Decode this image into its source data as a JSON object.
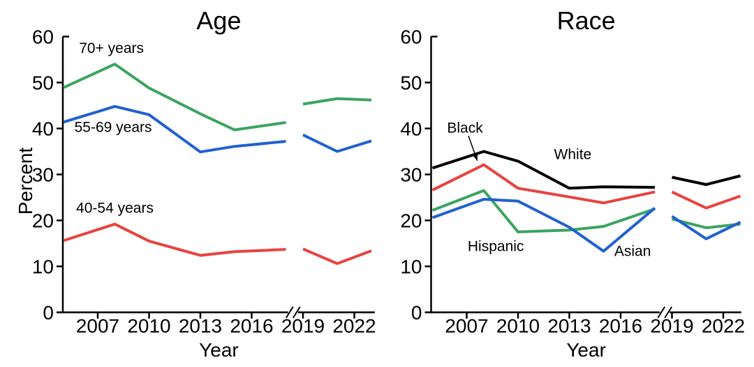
{
  "figure": {
    "background_color": "#ffffff",
    "text_color": "#000000",
    "axis_color": "#000000"
  },
  "chart_data": [
    {
      "type": "line",
      "title": "Age",
      "xlabel": "Year",
      "ylabel": "Percent",
      "ylim": [
        0,
        60
      ],
      "yticks": [
        0,
        10,
        20,
        30,
        40,
        50,
        60
      ],
      "xticks": [
        2007,
        2010,
        2013,
        2016,
        2019,
        2022
      ],
      "xlim": [
        2004.9,
        2023.2
      ],
      "axis_break_year": 2018.42,
      "grid": false,
      "legend": "inline-labels",
      "series": [
        {
          "name": "70+ years",
          "color": "#3ba45f",
          "segments": [
            {
              "x": [
                2005,
                2008,
                2010,
                2013,
                2015,
                2018
              ],
              "y": [
                48.9,
                54.0,
                48.8,
                43.2,
                39.7,
                41.3
              ]
            },
            {
              "x": [
                2019,
                2021,
                2023
              ],
              "y": [
                45.3,
                46.5,
                46.2
              ]
            }
          ]
        },
        {
          "name": "55-69 years",
          "color": "#2161d1",
          "segments": [
            {
              "x": [
                2005,
                2008,
                2010,
                2013,
                2015,
                2018
              ],
              "y": [
                41.4,
                44.8,
                43.0,
                34.9,
                36.1,
                37.2
              ]
            },
            {
              "x": [
                2019,
                2021,
                2023
              ],
              "y": [
                38.6,
                35.0,
                37.3
              ]
            }
          ]
        },
        {
          "name": "40-54 years",
          "color": "#e8433f",
          "segments": [
            {
              "x": [
                2005,
                2008,
                2010,
                2013,
                2015,
                2018
              ],
              "y": [
                15.6,
                19.2,
                15.5,
                12.4,
                13.2,
                13.7
              ]
            },
            {
              "x": [
                2019,
                2021,
                2023
              ],
              "y": [
                13.8,
                10.6,
                13.4
              ]
            }
          ]
        }
      ],
      "annotations": [
        {
          "text": "70+ years",
          "year": 2007.8,
          "pct": 57.6
        },
        {
          "text": "55-69 years",
          "year": 2007.9,
          "pct": 40.4
        },
        {
          "text": "40-54 years",
          "year": 2008.0,
          "pct": 22.8
        }
      ]
    },
    {
      "type": "line",
      "title": "Race",
      "xlabel": "Year",
      "ylabel": "",
      "ylim": [
        0,
        60
      ],
      "yticks": [
        0,
        10,
        20,
        30,
        40,
        50,
        60
      ],
      "xticks": [
        2007,
        2010,
        2013,
        2016,
        2019,
        2022
      ],
      "xlim": [
        2004.9,
        2023.05
      ],
      "axis_break_year": 2018.58,
      "grid": false,
      "legend": "inline-labels",
      "series": [
        {
          "name": "White",
          "color": "#000000",
          "segments": [
            {
              "x": [
                2005,
                2008,
                2010,
                2013,
                2015,
                2018
              ],
              "y": [
                31.4,
                35.0,
                32.9,
                27.0,
                27.3,
                27.2
              ]
            },
            {
              "x": [
                2019,
                2021,
                2023
              ],
              "y": [
                29.4,
                27.8,
                29.7
              ]
            }
          ]
        },
        {
          "name": "Black",
          "color": "#e8433f",
          "segments": [
            {
              "x": [
                2005,
                2008,
                2010,
                2013,
                2015,
                2018
              ],
              "y": [
                26.6,
                32.1,
                27.0,
                25.1,
                23.8,
                26.2
              ]
            },
            {
              "x": [
                2019,
                2021,
                2023
              ],
              "y": [
                26.2,
                22.7,
                25.3
              ]
            }
          ]
        },
        {
          "name": "Hispanic",
          "color": "#3ba45f",
          "segments": [
            {
              "x": [
                2005,
                2008,
                2010,
                2013,
                2015,
                2018
              ],
              "y": [
                22.2,
                26.5,
                17.5,
                17.9,
                18.7,
                22.5
              ]
            },
            {
              "x": [
                2019,
                2021,
                2023
              ],
              "y": [
                20.3,
                18.4,
                19.2
              ]
            }
          ]
        },
        {
          "name": "Asian",
          "color": "#2161d1",
          "segments": [
            {
              "x": [
                2005,
                2008,
                2010,
                2013,
                2015,
                2018
              ],
              "y": [
                20.6,
                24.6,
                24.2,
                18.5,
                13.3,
                22.7
              ]
            },
            {
              "x": [
                2019,
                2021,
                2023
              ],
              "y": [
                20.9,
                16.0,
                19.6
              ]
            }
          ]
        }
      ],
      "annotations": [
        {
          "text": "Black",
          "year": 2006.9,
          "pct": 40.2,
          "arrow": {
            "from": [
              2007.1,
              38.4
            ],
            "to": [
              2007.62,
              33.0
            ]
          }
        },
        {
          "text": "White",
          "year": 2013.2,
          "pct": 34.5
        },
        {
          "text": "Hispanic",
          "year": 2008.7,
          "pct": 14.5
        },
        {
          "text": "Asian",
          "year": 2016.7,
          "pct": 13.4
        }
      ]
    }
  ]
}
